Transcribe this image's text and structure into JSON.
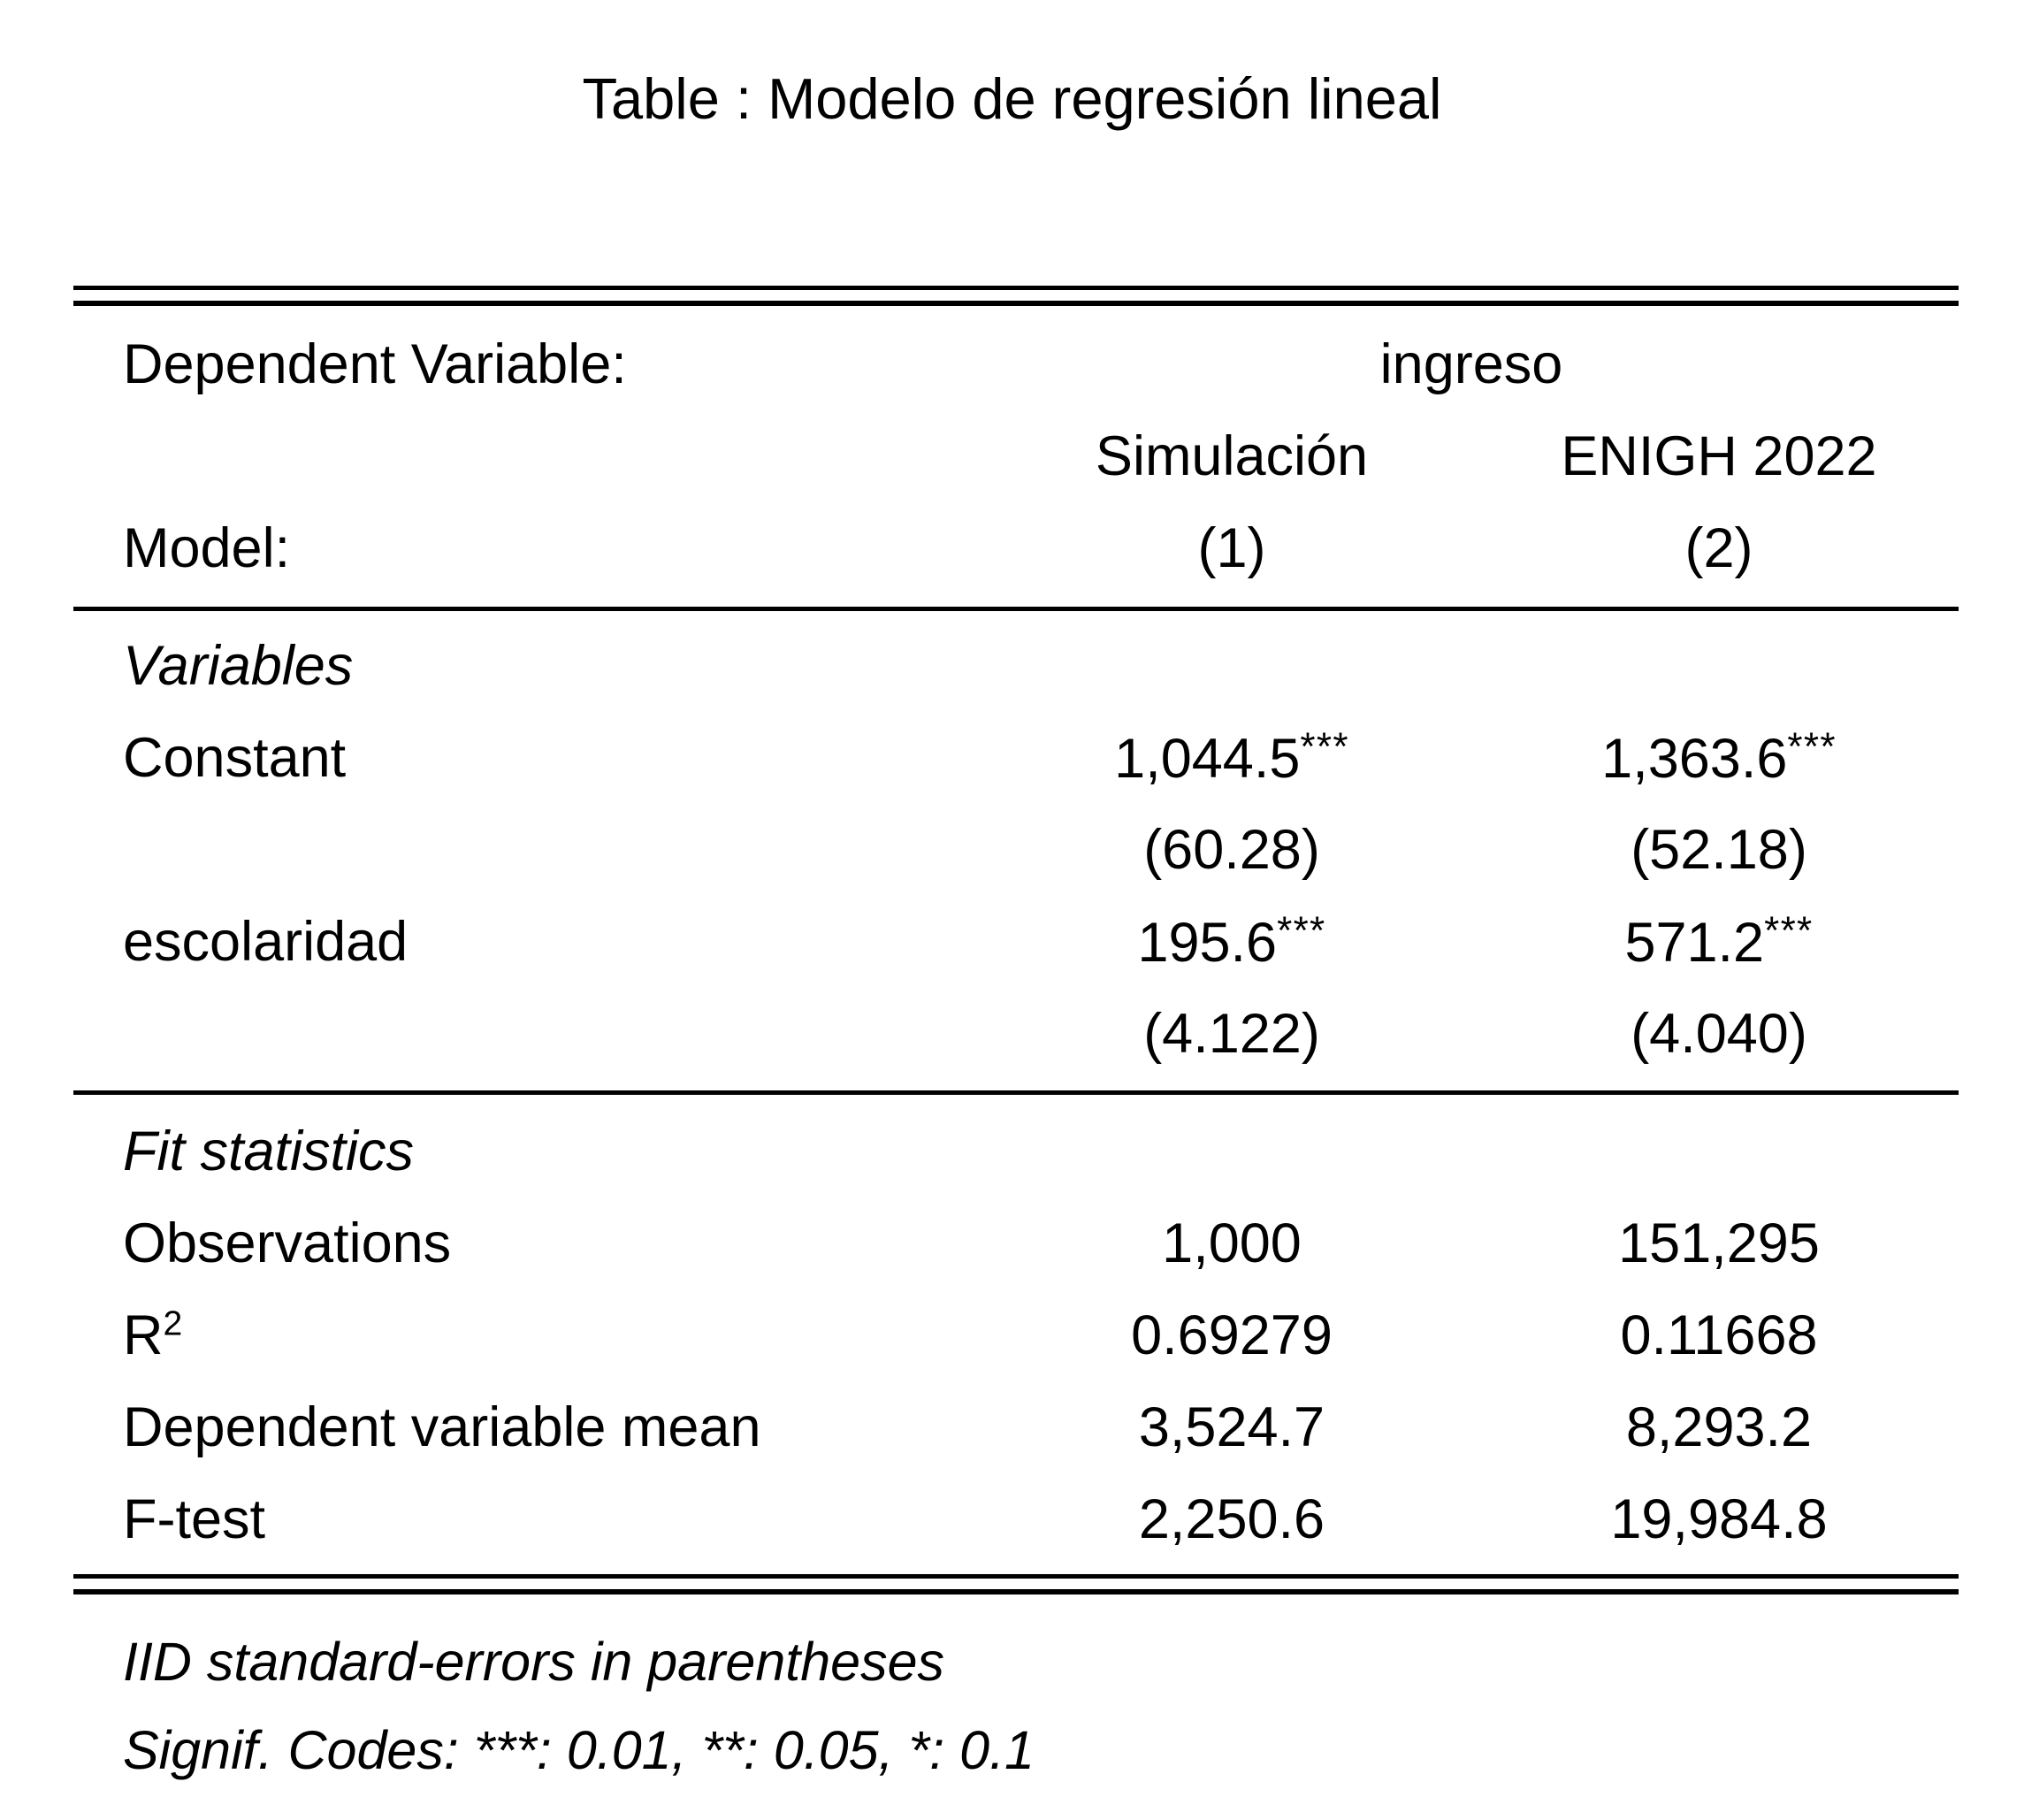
{
  "title": "Table : Modelo de regresión lineal",
  "header": {
    "dependent_variable_label": "Dependent Variable:",
    "dependent_variable": "ingreso",
    "model_label": "Model:",
    "columns": [
      {
        "name": "Simulación",
        "model": "(1)"
      },
      {
        "name": "ENIGH 2022",
        "model": "(2)"
      }
    ]
  },
  "sections": {
    "variables": {
      "heading": "Variables",
      "rows": [
        {
          "label": "Constant",
          "m1": "1,044.5",
          "m1_stars": "***",
          "m1_se": "(60.28)",
          "m2": "1,363.6",
          "m2_stars": "***",
          "m2_se": "(52.18)"
        },
        {
          "label": "escolaridad",
          "m1": "195.6",
          "m1_stars": "***",
          "m1_se": "(4.122)",
          "m2": "571.2",
          "m2_stars": "***",
          "m2_se": "(4.040)"
        }
      ]
    },
    "fit": {
      "heading": "Fit statistics",
      "rows": [
        {
          "label": "Observations",
          "m1": "1,000",
          "m2": "151,295"
        },
        {
          "label": "R",
          "label_sup": "2",
          "m1": "0.69279",
          "m2": "0.11668"
        },
        {
          "label": "Dependent variable mean",
          "m1": "3,524.7",
          "m2": "8,293.2"
        },
        {
          "label": "F-test",
          "m1": "2,250.6",
          "m2": "19,984.8"
        }
      ]
    }
  },
  "footnotes": [
    "IID standard-errors in parentheses",
    "Signif. Codes: ***: 0.01, **: 0.05, *: 0.1"
  ],
  "colors": {
    "text": "#000000",
    "background": "#ffffff",
    "rule": "#000000"
  },
  "chart_data": {
    "type": "table",
    "title": "Table : Modelo de regresión lineal",
    "columns": [
      "",
      "Simulación (1)",
      "ENIGH 2022 (2)"
    ],
    "rows": [
      [
        "Dependent Variable:",
        "ingreso",
        "ingreso"
      ],
      [
        "Constant (coef)",
        "1,044.5***",
        "1,363.6***"
      ],
      [
        "Constant (std. error)",
        "(60.28)",
        "(52.18)"
      ],
      [
        "escolaridad (coef)",
        "195.6***",
        "571.2***"
      ],
      [
        "escolaridad (std. error)",
        "(4.122)",
        "(4.040)"
      ],
      [
        "Observations",
        "1,000",
        "151,295"
      ],
      [
        "R2",
        "0.69279",
        "0.11668"
      ],
      [
        "Dependent variable mean",
        "3,524.7",
        "8,293.2"
      ],
      [
        "F-test",
        "2,250.6",
        "19,984.8"
      ]
    ]
  }
}
